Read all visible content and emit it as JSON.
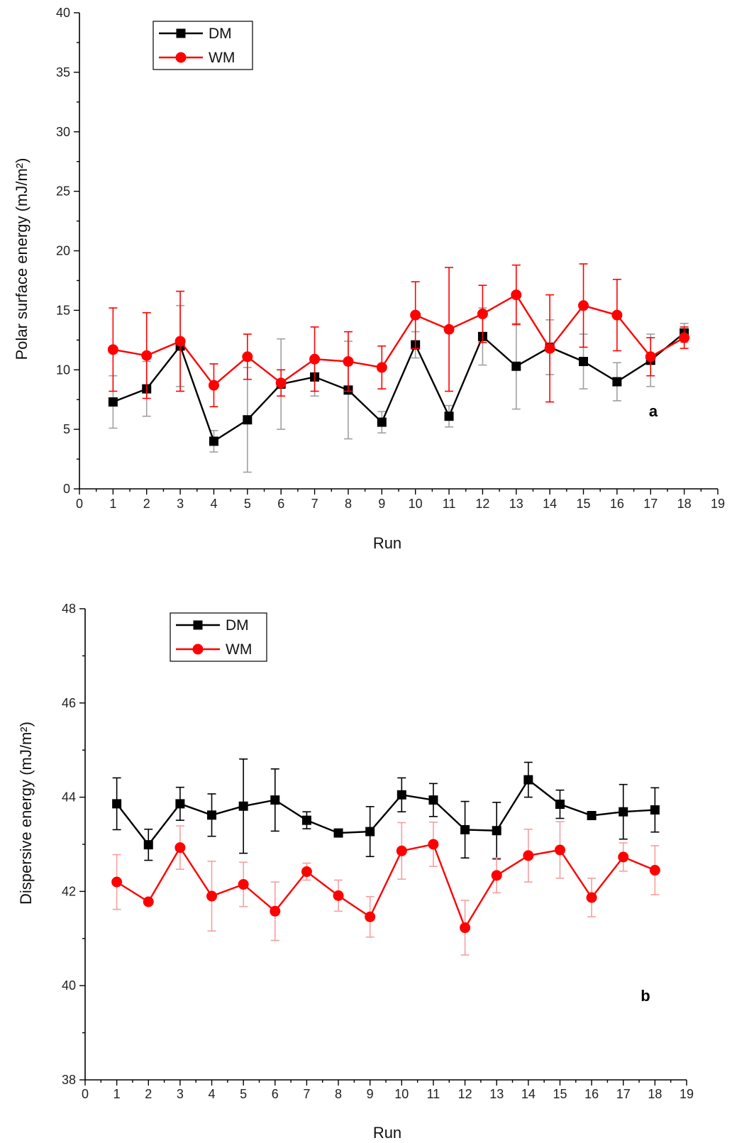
{
  "chart_data": [
    {
      "type": "line",
      "panel_label": "a",
      "xlabel": "Run",
      "ylabel": "Polar surface energy (mJ/m²)",
      "xlim": [
        0,
        19
      ],
      "ylim": [
        0,
        40
      ],
      "xticks": [
        0,
        1,
        2,
        3,
        4,
        5,
        6,
        7,
        8,
        9,
        10,
        11,
        12,
        13,
        14,
        15,
        16,
        17,
        18,
        19
      ],
      "yticks": [
        0,
        5,
        10,
        15,
        20,
        25,
        30,
        35,
        40
      ],
      "grid": false,
      "legend_position": "top-left",
      "x": [
        1,
        2,
        3,
        4,
        5,
        6,
        7,
        8,
        9,
        10,
        11,
        12,
        13,
        14,
        15,
        16,
        17,
        18
      ],
      "series": [
        {
          "name": "DM",
          "color": "#000000",
          "marker": "square",
          "errorbar_color": "#a0a0a0",
          "values": [
            7.3,
            8.4,
            12.0,
            4.0,
            5.8,
            8.8,
            9.4,
            8.3,
            5.6,
            12.1,
            6.1,
            12.8,
            10.3,
            11.9,
            10.7,
            9.0,
            10.8,
            13.1
          ],
          "errors": [
            2.2,
            2.3,
            3.4,
            0.9,
            4.4,
            3.8,
            1.6,
            4.1,
            0.9,
            1.1,
            0.9,
            2.4,
            3.6,
            2.3,
            2.3,
            1.6,
            2.2,
            0.8
          ]
        },
        {
          "name": "WM",
          "color": "#ff0000",
          "marker": "circle",
          "errorbar_color": "#ff0000",
          "values": [
            11.7,
            11.2,
            12.4,
            8.7,
            11.1,
            8.9,
            10.9,
            10.7,
            10.2,
            14.6,
            13.4,
            14.7,
            16.3,
            11.8,
            15.4,
            14.6,
            11.1,
            12.7
          ],
          "errors": [
            3.5,
            3.6,
            4.2,
            1.8,
            1.9,
            1.1,
            2.7,
            2.5,
            1.8,
            2.8,
            5.2,
            2.4,
            2.5,
            4.5,
            3.5,
            3.0,
            1.6,
            0.9
          ]
        }
      ]
    },
    {
      "type": "line",
      "panel_label": "b",
      "xlabel": "Run",
      "ylabel": "Dispersive energy (mJ/m²)",
      "xlim": [
        0,
        19
      ],
      "ylim": [
        38,
        48
      ],
      "xticks": [
        0,
        1,
        2,
        3,
        4,
        5,
        6,
        7,
        8,
        9,
        10,
        11,
        12,
        13,
        14,
        15,
        16,
        17,
        18,
        19
      ],
      "yticks": [
        38,
        40,
        42,
        44,
        46,
        48
      ],
      "grid": false,
      "legend_position": "top-left",
      "x": [
        1,
        2,
        3,
        4,
        5,
        6,
        7,
        8,
        9,
        10,
        11,
        12,
        13,
        14,
        15,
        16,
        17,
        18
      ],
      "series": [
        {
          "name": "DM",
          "color": "#000000",
          "marker": "square",
          "errorbar_color": "#000000",
          "values": [
            43.86,
            42.99,
            43.86,
            43.62,
            43.81,
            43.94,
            43.51,
            43.24,
            43.27,
            44.05,
            43.94,
            43.31,
            43.29,
            44.37,
            43.85,
            43.61,
            43.69,
            43.73
          ],
          "errors": [
            0.55,
            0.33,
            0.35,
            0.45,
            1.0,
            0.66,
            0.18,
            0.05,
            0.53,
            0.36,
            0.35,
            0.6,
            0.6,
            0.37,
            0.3,
            0.05,
            0.58,
            0.47
          ]
        },
        {
          "name": "WM",
          "color": "#ff0000",
          "marker": "circle",
          "errorbar_color": "#f4a0a0",
          "values": [
            42.2,
            41.78,
            42.93,
            41.9,
            42.15,
            41.58,
            42.42,
            41.91,
            41.46,
            42.86,
            43.0,
            41.23,
            42.34,
            42.76,
            42.88,
            41.87,
            42.73,
            42.45
          ],
          "errors": [
            0.58,
            0.05,
            0.46,
            0.74,
            0.47,
            0.62,
            0.18,
            0.33,
            0.43,
            0.6,
            0.47,
            0.58,
            0.37,
            0.56,
            0.6,
            0.41,
            0.3,
            0.52
          ]
        }
      ]
    }
  ]
}
